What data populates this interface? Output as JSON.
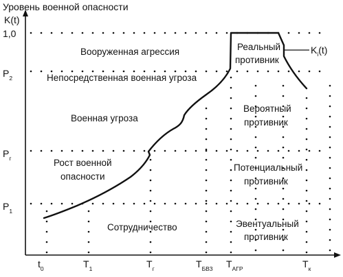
{
  "y_axis_title": "Уровень военной опасности",
  "y_axis_unit": "K(t)",
  "y_ticks": [
    {
      "main": "1,0",
      "sub": ""
    },
    {
      "main": "P",
      "sub": "2"
    },
    {
      "main": "P",
      "sub": "г"
    },
    {
      "main": "P",
      "sub": "1"
    }
  ],
  "x_ticks": [
    {
      "main": "t",
      "sub": "0"
    },
    {
      "main": "T",
      "sub": "1"
    },
    {
      "main": "T",
      "sub": "г"
    },
    {
      "main": "T",
      "sub": "БВЗ"
    },
    {
      "main": "T",
      "sub": "АГР"
    },
    {
      "main": "T",
      "sub": "к"
    }
  ],
  "zones_left": [
    "Вооруженная агрессия",
    "Непосредственная военная угроза",
    "Военная угроза",
    "Рост военной",
    "опасности",
    "Сотрудничество"
  ],
  "zones_right": [
    "Реальный",
    "противник",
    "Вероятный",
    "противник",
    "Потенциальный",
    "противник",
    "Эвентуальный",
    "противник"
  ],
  "curve_label": {
    "main": "K",
    "sub": "i",
    "tail": "(t)"
  },
  "colors": {
    "ink": "#111111",
    "background": "#ffffff"
  }
}
